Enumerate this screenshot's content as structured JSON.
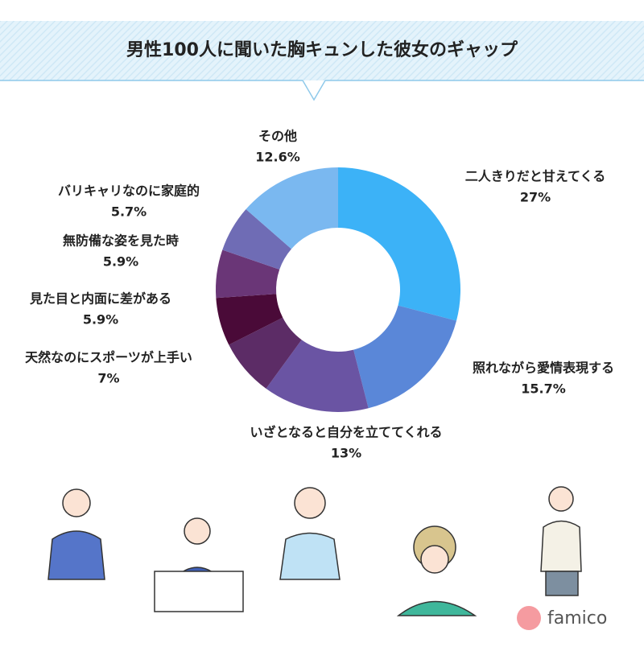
{
  "chart_data": {
    "type": "donut",
    "title": "男性100人に聞いた胸キュンした彼女のギャップ",
    "categories": [
      "二人きりだと甘えてくる",
      "照れながら愛情表現する",
      "いざとなると自分を立ててくれる",
      "天然なのにスポーツが上手い",
      "見た目と内面に差がある",
      "無防備な姿を見た時",
      "バリキャリなのに家庭的",
      "その他"
    ],
    "values": [
      27,
      15.7,
      13,
      7,
      5.9,
      5.9,
      5.7,
      12.6
    ],
    "value_labels": [
      "27%",
      "15.7%",
      "13%",
      "7%",
      "5.9%",
      "5.9%",
      "5.7%",
      "12.6%"
    ],
    "colors": [
      "#3cb2f7",
      "#5a87d8",
      "#6a54a3",
      "#5c2c66",
      "#4a0a38",
      "#6a3677",
      "#6f6cb5",
      "#7ab8f0"
    ]
  },
  "logo": "famico"
}
